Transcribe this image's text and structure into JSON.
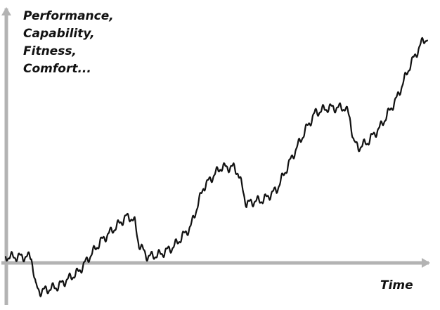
{
  "chart_data": {
    "type": "line",
    "ylabel_lines": [
      "Performance,",
      "Capability,",
      "Fitness,",
      "Comfort..."
    ],
    "xlabel": "Time",
    "ticks_shown": false,
    "grid": false,
    "colors": {
      "axis": "#b3b3b3",
      "line": "#111111",
      "background": "#ffffff"
    },
    "xlim": [
      0,
      100
    ],
    "ylim": [
      -20,
      100
    ],
    "series": [
      {
        "x": [
          0,
          6,
          7,
          8,
          12,
          17,
          22,
          28,
          29,
          30,
          31,
          33,
          36,
          39,
          43,
          46,
          50,
          53,
          54,
          55,
          56,
          57,
          60,
          63,
          66,
          70,
          72,
          75,
          79,
          80,
          81,
          82,
          84,
          87,
          91,
          94,
          97,
          98
        ],
        "y": [
          0,
          0,
          -12,
          -14,
          -12,
          -6,
          6,
          16,
          16,
          14,
          5,
          0,
          1,
          4,
          12,
          28,
          36,
          36,
          34,
          28,
          21,
          22,
          23,
          27,
          38,
          52,
          58,
          60,
          60,
          56,
          46,
          44,
          46,
          52,
          64,
          77,
          87,
          88
        ]
      }
    ]
  }
}
